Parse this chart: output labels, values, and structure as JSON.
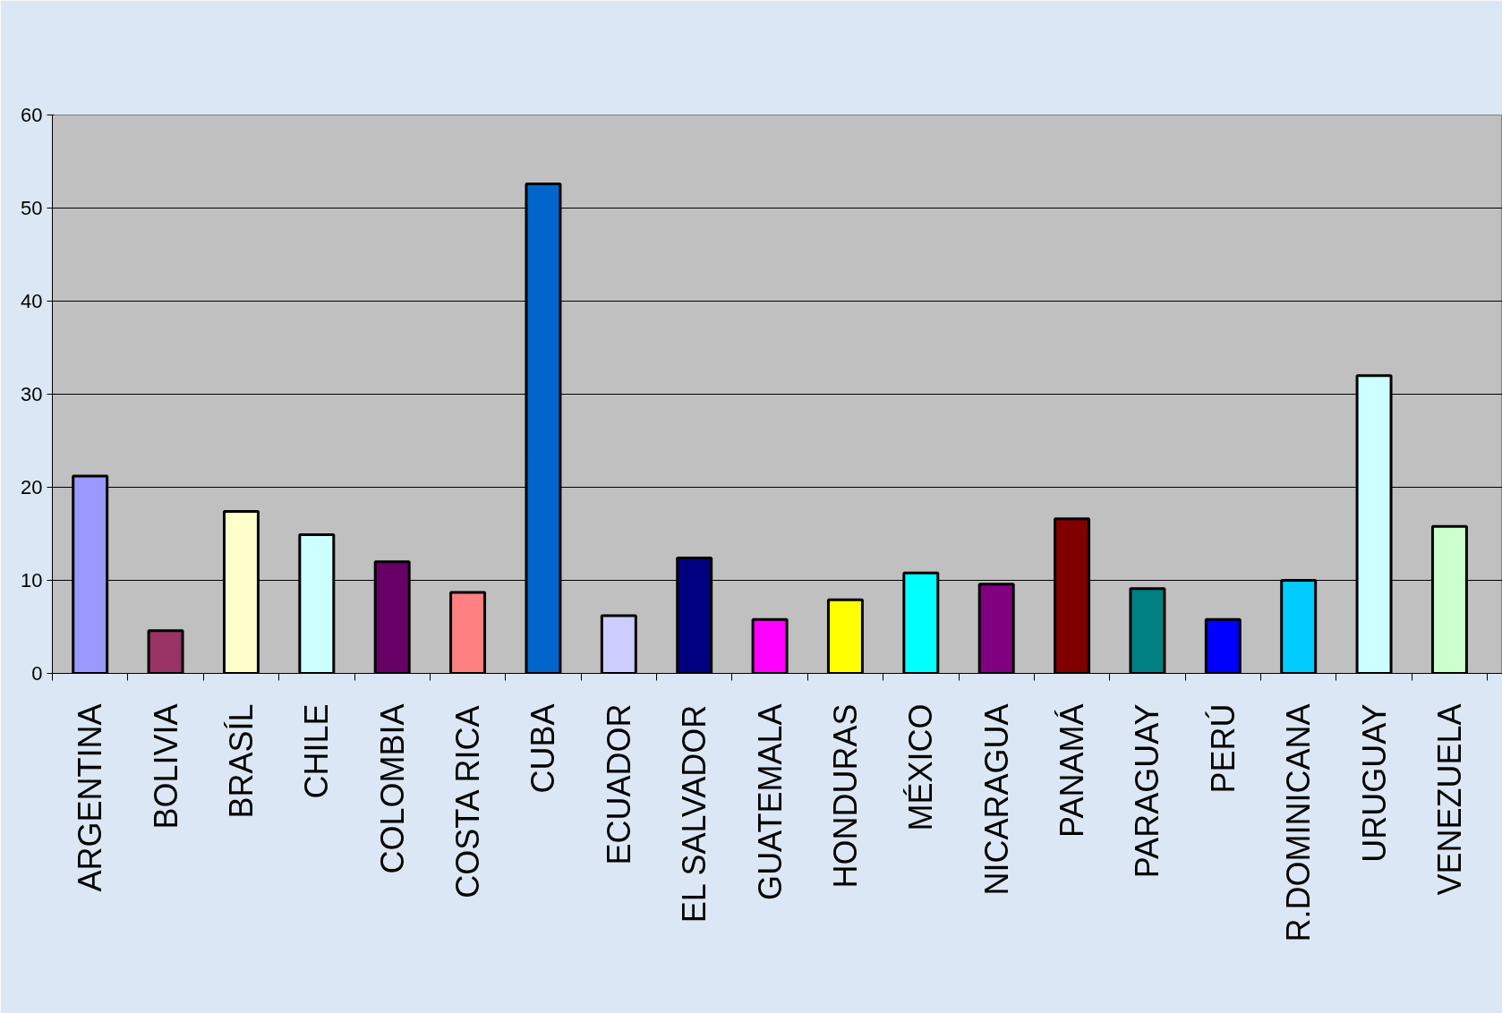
{
  "chart_data": {
    "type": "bar",
    "categories": [
      "ARGENTINA",
      "BOLIVIA",
      "BRASÍL",
      "CHILE",
      "COLOMBIA",
      "COSTA RICA",
      "CUBA",
      "ECUADOR",
      "EL SALVADOR",
      "GUATEMALA",
      "HONDURAS",
      "MÉXICO",
      "NICARAGUA",
      "PANAMÁ",
      "PARAGUAY",
      "PERÚ",
      "R.DOMINICANA",
      "URUGUAY",
      "VENEZUELA"
    ],
    "values": [
      21.2,
      4.6,
      17.4,
      14.9,
      12.0,
      8.7,
      52.6,
      6.2,
      12.4,
      5.8,
      7.9,
      10.8,
      9.6,
      16.6,
      9.1,
      5.8,
      10.0,
      32.0,
      15.8
    ],
    "colors": [
      "#9999ff",
      "#993366",
      "#ffffcc",
      "#ccffff",
      "#660066",
      "#ff8080",
      "#0066cc",
      "#ccccff",
      "#000080",
      "#ff00ff",
      "#ffff00",
      "#00ffff",
      "#800080",
      "#800000",
      "#008080",
      "#0000ff",
      "#00ccff",
      "#ccffff",
      "#ccffcc"
    ],
    "ylim": [
      0,
      60
    ],
    "yticks": [
      0,
      10,
      20,
      30,
      40,
      50,
      60
    ],
    "grid": "y"
  }
}
